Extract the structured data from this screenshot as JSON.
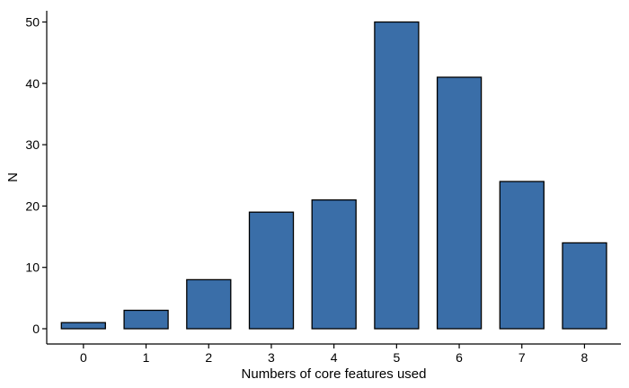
{
  "chart_data": {
    "type": "bar",
    "title": "",
    "xlabel": "Numbers of core features used",
    "ylabel": "N",
    "categories": [
      "0",
      "1",
      "2",
      "3",
      "4",
      "5",
      "6",
      "7",
      "8"
    ],
    "values": [
      1,
      3,
      8,
      19,
      21,
      50,
      41,
      24,
      14
    ],
    "ylim": [
      0,
      52
    ],
    "yticks": [
      0,
      10,
      20,
      30,
      40,
      50
    ],
    "grid": false,
    "legend": "none",
    "colors": {
      "bar_fill": "#3a6ea8",
      "bar_stroke": "#000000",
      "background": "#ffffff"
    }
  }
}
